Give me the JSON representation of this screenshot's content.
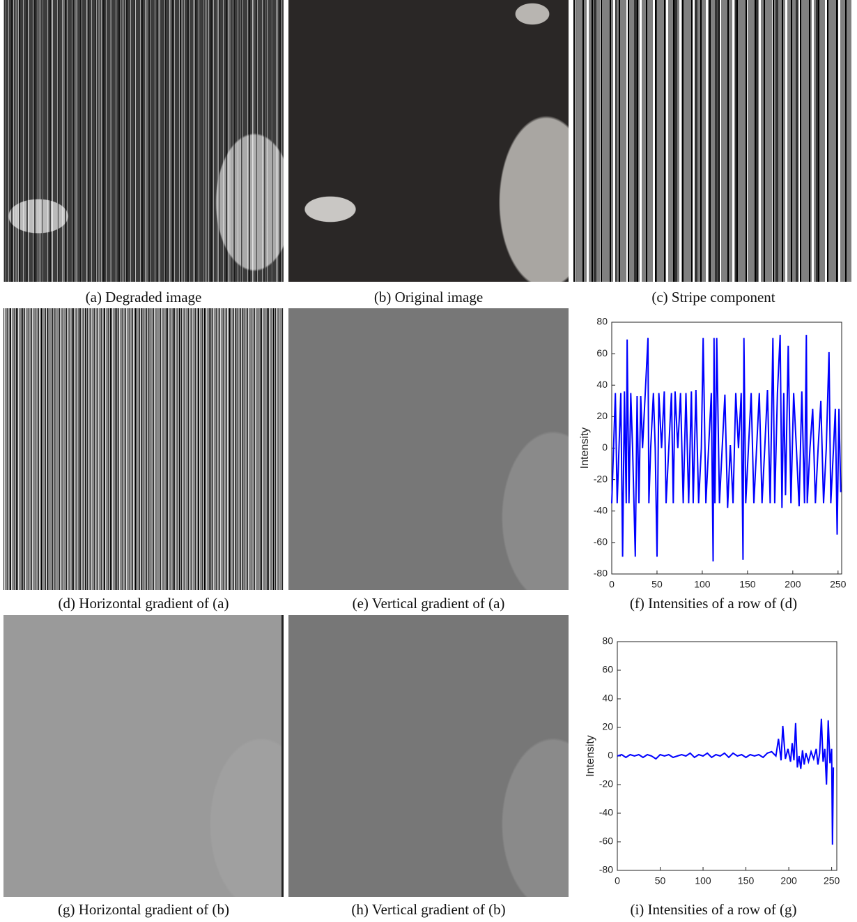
{
  "panels": [
    {
      "caption": "(a) Degraded image"
    },
    {
      "caption": "(b) Original image"
    },
    {
      "caption": "(c) Stripe component"
    },
    {
      "caption": "(d) Horizontal gradient of (a)"
    },
    {
      "caption": "(e) Vertical gradient of (a)"
    },
    {
      "caption": "(f) Intensities of a row of (d)"
    },
    {
      "caption": "(g) Horizontal gradient of (b)"
    },
    {
      "caption": "(h) Vertical gradient of (b)"
    },
    {
      "caption": "(i) Intensities of a row of (g)"
    }
  ],
  "chart_data": [
    {
      "type": "line",
      "y_label": "Intensity",
      "xlim": [
        0,
        254
      ],
      "ylim": [
        -80,
        80
      ],
      "xticks": [
        0,
        50,
        100,
        150,
        200,
        250
      ],
      "yticks": [
        -80,
        -60,
        -40,
        -20,
        0,
        20,
        40,
        60,
        80
      ],
      "x": [
        0,
        2,
        4,
        6,
        8,
        10,
        12,
        14,
        16,
        17,
        19,
        21,
        23,
        26,
        28,
        30,
        32,
        34,
        37,
        40,
        41,
        43,
        46,
        48,
        50,
        52,
        55,
        58,
        60,
        63,
        66,
        68,
        70,
        73,
        76,
        79,
        82,
        85,
        88,
        90,
        93,
        96,
        99,
        101,
        104,
        107,
        110,
        112,
        113,
        114,
        116,
        119,
        122,
        125,
        128,
        131,
        134,
        137,
        140,
        143,
        145,
        146,
        148,
        151,
        154,
        157,
        160,
        163,
        166,
        169,
        172,
        175,
        178,
        180,
        183,
        186,
        188,
        190,
        192,
        195,
        198,
        201,
        204,
        207,
        210,
        213,
        215,
        216,
        219,
        222,
        225,
        228,
        231,
        234,
        237,
        240,
        242,
        245,
        247,
        249,
        251,
        253
      ],
      "series": [
        {
          "color": "#0000ff",
          "values": [
            -35,
            0,
            35,
            -35,
            0,
            35,
            -69,
            36,
            -35,
            69,
            -35,
            35,
            0,
            -69,
            33,
            -35,
            33,
            0,
            35,
            70,
            -35,
            0,
            35,
            0,
            -69,
            35,
            0,
            36,
            -35,
            0,
            35,
            -35,
            36,
            0,
            35,
            -35,
            35,
            -35,
            36,
            -35,
            37,
            -35,
            0,
            70,
            -35,
            0,
            35,
            -72,
            70,
            -35,
            70,
            -35,
            0,
            34,
            -38,
            2,
            -35,
            35,
            0,
            35,
            -71,
            70,
            -35,
            0,
            35,
            -35,
            0,
            35,
            -35,
            0,
            37,
            -35,
            70,
            -35,
            35,
            72,
            -38,
            35,
            -30,
            65,
            -35,
            35,
            0,
            -37,
            36,
            -35,
            72,
            -35,
            0,
            25,
            -35,
            0,
            30,
            -35,
            0,
            61,
            -35,
            0,
            25,
            -55,
            25,
            -28
          ]
        }
      ]
    },
    {
      "type": "line",
      "y_label": "Intensity",
      "xlim": [
        0,
        256
      ],
      "ylim": [
        -80,
        80
      ],
      "xticks": [
        0,
        50,
        100,
        150,
        200,
        250
      ],
      "yticks": [
        -80,
        -60,
        -40,
        -20,
        0,
        20,
        40,
        60,
        80
      ],
      "x": [
        0,
        5,
        10,
        15,
        20,
        25,
        30,
        35,
        40,
        45,
        50,
        55,
        60,
        65,
        70,
        75,
        80,
        85,
        90,
        95,
        100,
        105,
        110,
        115,
        120,
        125,
        130,
        135,
        140,
        145,
        150,
        155,
        160,
        165,
        170,
        175,
        180,
        185,
        188,
        191,
        193,
        196,
        199,
        202,
        204,
        206,
        208,
        210,
        212,
        214,
        216,
        218,
        220,
        223,
        226,
        229,
        232,
        234,
        236,
        238,
        240,
        242,
        244,
        246,
        248,
        250,
        251,
        252
      ],
      "series": [
        {
          "color": "#0000ff",
          "values": [
            0,
            1,
            -1,
            1,
            0,
            1,
            -1,
            1,
            0,
            -2,
            1,
            0,
            1,
            -1,
            0,
            1,
            0,
            2,
            -1,
            1,
            0,
            2,
            -1,
            1,
            0,
            2,
            -1,
            2,
            0,
            1,
            -1,
            1,
            0,
            1,
            -1,
            2,
            3,
            0,
            12,
            -3,
            21,
            -2,
            5,
            -4,
            9,
            -3,
            23,
            -8,
            0,
            -9,
            4,
            -6,
            2,
            -4,
            3,
            -2,
            5,
            -6,
            2,
            26,
            -4,
            5,
            -20,
            25,
            -5,
            5,
            -62,
            -8
          ]
        }
      ]
    }
  ]
}
